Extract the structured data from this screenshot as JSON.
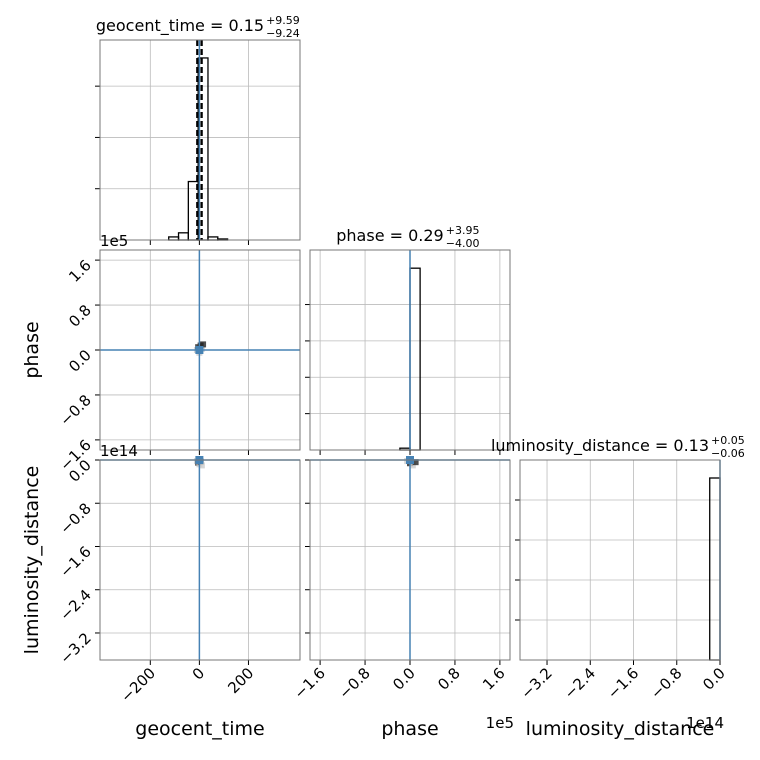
{
  "chart_data": {
    "type": "corner",
    "params": [
      {
        "name": "geocent_time",
        "title": "geocent_time = 0.15",
        "title_plus": "+9.59",
        "title_minus": "−9.24",
        "lim": [
          -405,
          410
        ],
        "ticks": [
          {
            "value": -200,
            "label": "−200"
          },
          0,
          200
        ],
        "bins": [
          -125,
          -85,
          -45,
          -5,
          35,
          75,
          115
        ],
        "counts": [
          0.06,
          0.14,
          1.14,
          3.55,
          0.06,
          0.02
        ],
        "hist_ylim": [
          0,
          3.9
        ],
        "hist_yticks": [
          1,
          2,
          3
        ],
        "quantiles": [
          -9.09,
          0.15,
          9.74
        ]
      },
      {
        "name": "phase",
        "title": "phase = 0.29",
        "title_plus": "+3.95",
        "title_minus": "−4.00",
        "offset_label": "1e5",
        "lim": [
          -1.78,
          1.78
        ],
        "ticks": [
          {
            "value": -1.6,
            "label": "−1.6"
          },
          {
            "value": -0.8,
            "label": "−0.8"
          },
          {
            "value": 0,
            "label": "0.0"
          },
          0.8,
          1.6
        ],
        "bins": [
          -0.18,
          0,
          0.18
        ],
        "counts": [
          0.05,
          5.0
        ],
        "hist_ylim": [
          0,
          5.5
        ],
        "hist_yticks": [
          1,
          2,
          3,
          4
        ]
      },
      {
        "name": "luminosity_distance",
        "title": "luminosity_distance = 0.13",
        "title_plus": "+0.05",
        "title_minus": "−0.06",
        "offset_label": "1e14",
        "lim": [
          -3.7,
          0
        ],
        "ticks": [
          {
            "value": -3.2,
            "label": "−3.2"
          },
          {
            "value": -2.4,
            "label": "−2.4"
          },
          {
            "value": -1.6,
            "label": "−1.6"
          },
          {
            "value": -0.8,
            "label": "−0.8"
          },
          {
            "value": 0,
            "label": "0.0"
          }
        ],
        "bins": [
          -0.19,
          0
        ],
        "counts": [
          4.55
        ],
        "hist_ylim": [
          0,
          5
        ],
        "hist_yticks": [
          1,
          2,
          3,
          4
        ]
      }
    ],
    "truths": [
      0,
      0,
      0
    ],
    "truth_color": "#4682b4",
    "pairs": [
      {
        "x": 0,
        "y": 1,
        "points": {
          "x": [
            -10,
            -5,
            0,
            5,
            10,
            15
          ],
          "y": [
            0,
            0.05,
            -0.05,
            0.08,
            0.02,
            0.1
          ]
        }
      },
      {
        "x": 0,
        "y": 2,
        "points": {
          "x": [
            -10,
            -5,
            0,
            5,
            10
          ],
          "y": [
            -0.02,
            -0.05,
            -0.08,
            -0.03,
            -0.1
          ]
        }
      },
      {
        "x": 1,
        "y": 2,
        "points": {
          "x": [
            -0.05,
            0,
            0.05,
            0.1
          ],
          "y": [
            -0.02,
            -0.06,
            -0.1,
            -0.04
          ]
        }
      }
    ],
    "grid": true
  }
}
